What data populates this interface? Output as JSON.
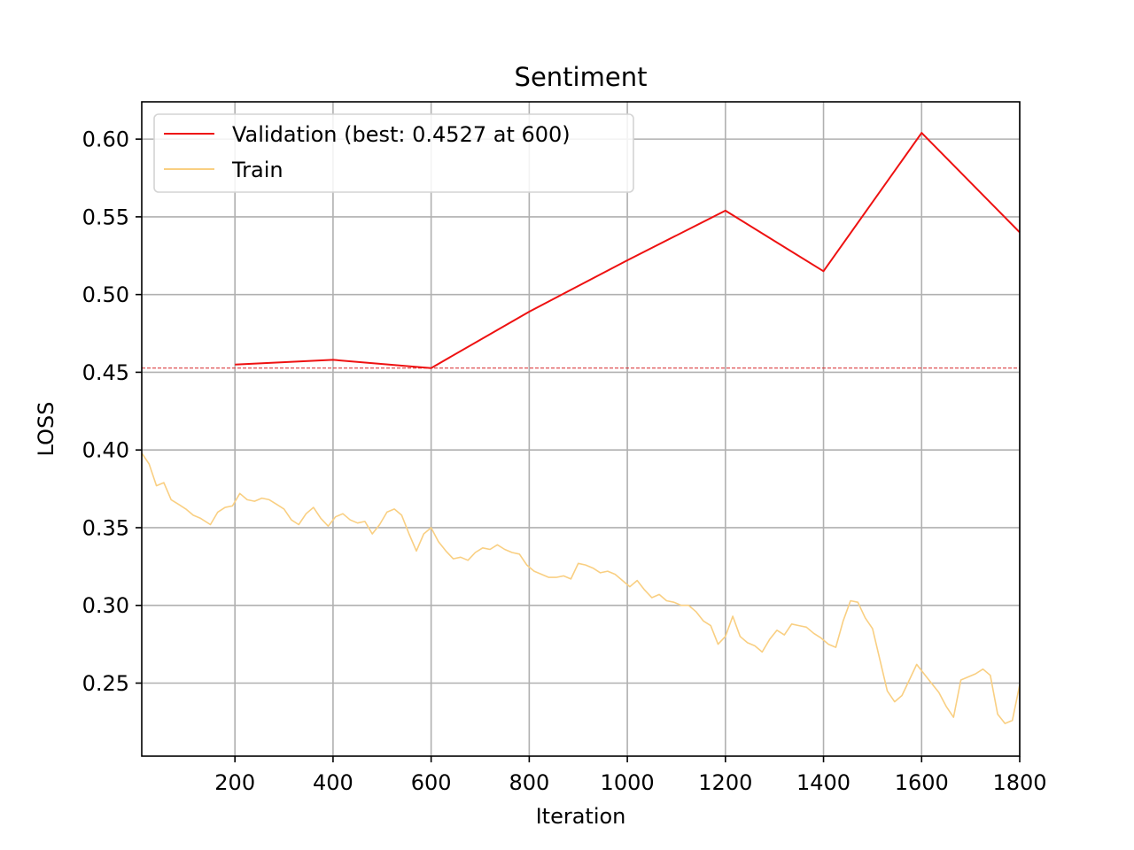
{
  "chart_data": {
    "type": "line",
    "title": "Sentiment",
    "xlabel": "Iteration",
    "ylabel": "LOSS",
    "xlim": [
      10,
      1800
    ],
    "ylim": [
      0.203,
      0.624
    ],
    "xticks": [
      200,
      400,
      600,
      800,
      1000,
      1200,
      1400,
      1600,
      1800
    ],
    "xtick_labels": [
      "200",
      "400",
      "600",
      "800",
      "1000",
      "1200",
      "1400",
      "1600",
      "1800"
    ],
    "yticks": [
      0.25,
      0.3,
      0.35,
      0.4,
      0.45,
      0.5,
      0.55,
      0.6
    ],
    "ytick_labels": [
      "0.25",
      "0.30",
      "0.35",
      "0.40",
      "0.45",
      "0.50",
      "0.55",
      "0.60"
    ],
    "grid": true,
    "legend_position": "top-left",
    "best_line": {
      "y": 0.4527,
      "color": "#d62728"
    },
    "series": [
      {
        "name": "Validation (best: 0.4527 at 600)",
        "color": "#ee1111",
        "x": [
          200,
          400,
          600,
          800,
          1000,
          1200,
          1400,
          1600,
          1800
        ],
        "y": [
          0.455,
          0.458,
          0.4527,
          0.489,
          0.522,
          0.554,
          0.515,
          0.604,
          0.54
        ]
      },
      {
        "name": "Train",
        "color": "#f9cf82",
        "x": [
          10,
          25,
          40,
          55,
          70,
          85,
          100,
          115,
          130,
          150,
          165,
          180,
          195,
          210,
          225,
          240,
          255,
          270,
          285,
          300,
          315,
          330,
          345,
          360,
          375,
          390,
          405,
          420,
          435,
          450,
          465,
          480,
          495,
          510,
          525,
          540,
          555,
          570,
          585,
          600,
          615,
          630,
          645,
          660,
          675,
          690,
          705,
          720,
          735,
          750,
          765,
          780,
          795,
          810,
          825,
          840,
          855,
          870,
          885,
          900,
          915,
          930,
          945,
          960,
          975,
          990,
          1005,
          1020,
          1035,
          1050,
          1065,
          1080,
          1095,
          1110,
          1125,
          1140,
          1155,
          1170,
          1185,
          1200,
          1215,
          1230,
          1245,
          1260,
          1275,
          1290,
          1305,
          1320,
          1335,
          1350,
          1365,
          1380,
          1395,
          1410,
          1425,
          1440,
          1455,
          1470,
          1485,
          1500,
          1515,
          1530,
          1545,
          1560,
          1575,
          1590,
          1605,
          1620,
          1635,
          1650,
          1665,
          1680,
          1695,
          1710,
          1725,
          1740,
          1755,
          1770,
          1785,
          1800
        ],
        "y": [
          0.398,
          0.391,
          0.377,
          0.379,
          0.368,
          0.365,
          0.362,
          0.358,
          0.356,
          0.352,
          0.36,
          0.363,
          0.364,
          0.372,
          0.368,
          0.367,
          0.369,
          0.368,
          0.365,
          0.362,
          0.355,
          0.352,
          0.359,
          0.363,
          0.356,
          0.351,
          0.357,
          0.359,
          0.355,
          0.353,
          0.354,
          0.346,
          0.352,
          0.36,
          0.362,
          0.358,
          0.346,
          0.335,
          0.346,
          0.35,
          0.341,
          0.335,
          0.33,
          0.331,
          0.329,
          0.334,
          0.337,
          0.336,
          0.339,
          0.336,
          0.334,
          0.333,
          0.326,
          0.322,
          0.32,
          0.318,
          0.318,
          0.319,
          0.317,
          0.327,
          0.326,
          0.324,
          0.321,
          0.322,
          0.32,
          0.316,
          0.312,
          0.316,
          0.31,
          0.305,
          0.307,
          0.303,
          0.302,
          0.3,
          0.3,
          0.296,
          0.29,
          0.287,
          0.275,
          0.28,
          0.293,
          0.28,
          0.276,
          0.274,
          0.27,
          0.278,
          0.284,
          0.281,
          0.288,
          0.287,
          0.286,
          0.282,
          0.279,
          0.275,
          0.273,
          0.29,
          0.303,
          0.302,
          0.292,
          0.285,
          0.265,
          0.245,
          0.238,
          0.242,
          0.252,
          0.262,
          0.256,
          0.25,
          0.244,
          0.235,
          0.228,
          0.252,
          0.254,
          0.256,
          0.259,
          0.255,
          0.23,
          0.224,
          0.226,
          0.249
        ]
      }
    ]
  }
}
